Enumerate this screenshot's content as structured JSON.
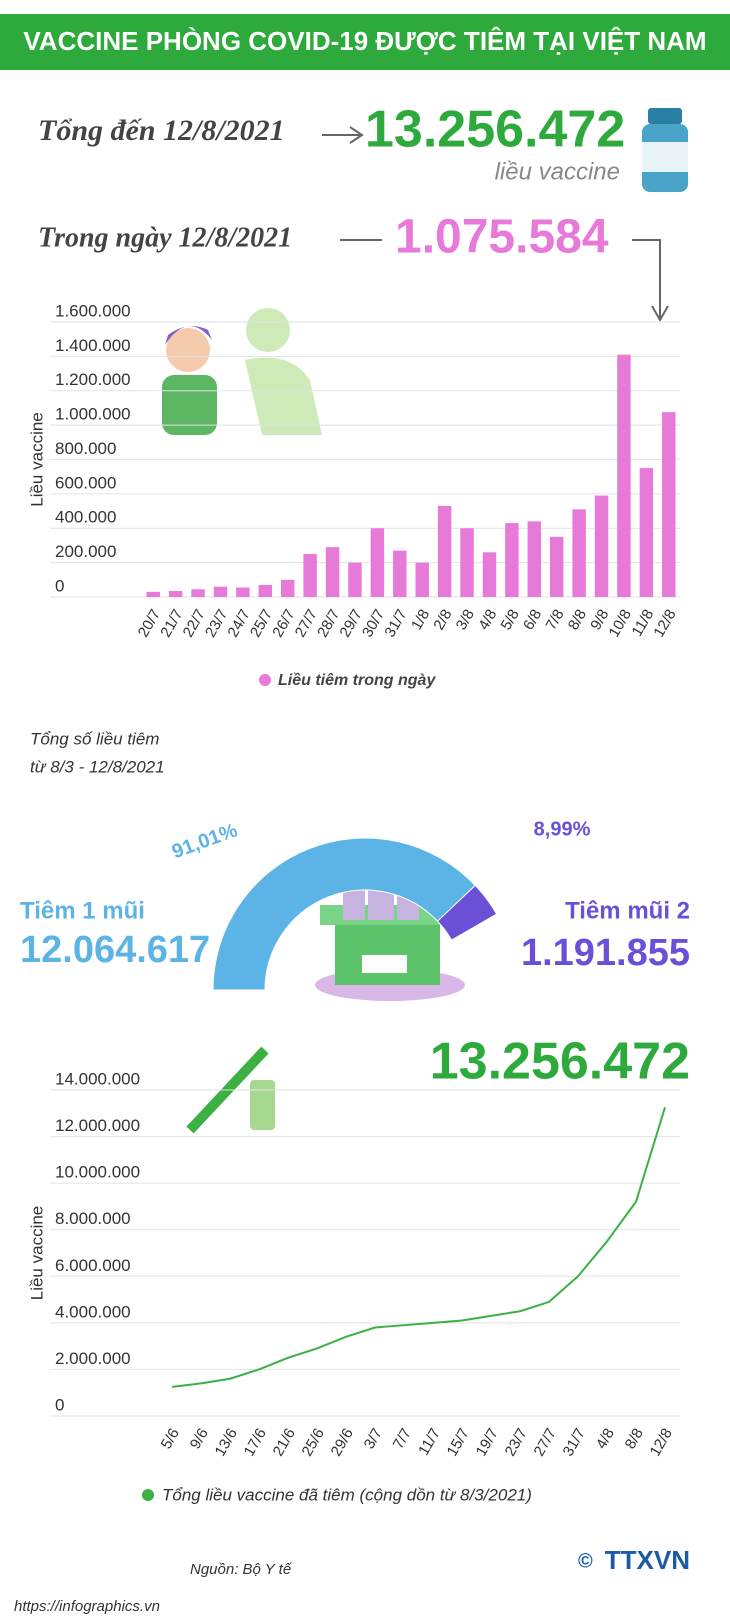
{
  "header": {
    "title": "VACCINE PHÒNG COVID-19 ĐƯỢC TIÊM TẠI VIỆT NAM",
    "total_label": "Tổng đến 12/8/2021",
    "total": "13.256.472",
    "total_unit": "liều vaccine",
    "day_label": "Trong ngày 12/8/2021",
    "day_total": "1.075.584"
  },
  "chart_data": [
    {
      "type": "bar",
      "ylabel": "Liều vaccine",
      "legend": "Liều tiêm trong ngày",
      "color": "#e77ad9",
      "grid": true,
      "categories": [
        "20/7",
        "21/7",
        "22/7",
        "23/7",
        "24/7",
        "25/7",
        "26/7",
        "27/7",
        "28/7",
        "29/7",
        "30/7",
        "31/7",
        "1/8",
        "2/8",
        "3/8",
        "4/8",
        "5/8",
        "6/8",
        "7/8",
        "8/8",
        "9/8",
        "10/8",
        "11/8",
        "12/8"
      ],
      "values": [
        30000,
        35000,
        45000,
        60000,
        55000,
        70000,
        100000,
        250000,
        290000,
        200000,
        400000,
        270000,
        200000,
        530000,
        400000,
        260000,
        430000,
        440000,
        350000,
        510000,
        590000,
        1410000,
        750000,
        1075584
      ],
      "ylim": [
        0,
        1600000
      ],
      "yticks": [
        0,
        {
          "value": 200000,
          "label": "200.000"
        },
        {
          "value": 400000,
          "label": "400.000"
        },
        {
          "value": 600000,
          "label": "600.000"
        },
        {
          "value": 800000,
          "label": "800.000"
        },
        {
          "value": 1000000,
          "label": "1.000.000"
        },
        {
          "value": 1200000,
          "label": "1.200.000"
        },
        {
          "value": 1400000,
          "label": "1.400.000"
        },
        {
          "value": 1600000,
          "label": "1.600.000"
        }
      ]
    },
    {
      "type": "gauge",
      "title": "Tổng số liều tiêm",
      "subtitle": "từ 8/3 - 12/8/2021",
      "categories": [
        "Tiêm 1 mũi",
        "Tiêm mũi 2"
      ],
      "values": [
        91.01,
        8.99
      ],
      "value_labels": [
        "91,01%",
        "8,99%"
      ],
      "counts": [
        "12.064.617",
        "1.191.855"
      ],
      "colors": [
        "#5cb3e6",
        "#6b4fd6"
      ]
    },
    {
      "type": "line",
      "ylabel": "Liều vaccine",
      "legend": "Tổng liều vaccine đã tiêm (cộng dồn từ 8/3/2021)",
      "annotation": "13.256.472",
      "color": "#3cb043",
      "grid": true,
      "categories": [
        "5/6",
        "9/6",
        "13/6",
        "17/6",
        "21/6",
        "25/6",
        "29/6",
        "3/7",
        "7/7",
        "11/7",
        "15/7",
        "19/7",
        "23/7",
        "27/7",
        "31/7",
        "4/8",
        "8/8",
        "12/8"
      ],
      "values": [
        1250000,
        1400000,
        1600000,
        2000000,
        2500000,
        2900000,
        3400000,
        3800000,
        3900000,
        4000000,
        4100000,
        4300000,
        4500000,
        4900000,
        6000000,
        7500000,
        9200000,
        13256472
      ],
      "ylim": [
        0,
        14000000
      ],
      "yticks": [
        0,
        {
          "value": 2000000,
          "label": "2.000.000"
        },
        {
          "value": 4000000,
          "label": "4.000.000"
        },
        {
          "value": 6000000,
          "label": "6.000.000"
        },
        {
          "value": 8000000,
          "label": "8.000.000"
        },
        {
          "value": 10000000,
          "label": "10.000.000"
        },
        {
          "value": 12000000,
          "label": "12.000.000"
        },
        {
          "value": 14000000,
          "label": "14.000.000"
        }
      ]
    }
  ],
  "footer": {
    "source": "Nguồn: Bộ Y tế",
    "url": "https://infographics.vn",
    "copyright": "©",
    "agency": "TTXVN"
  }
}
